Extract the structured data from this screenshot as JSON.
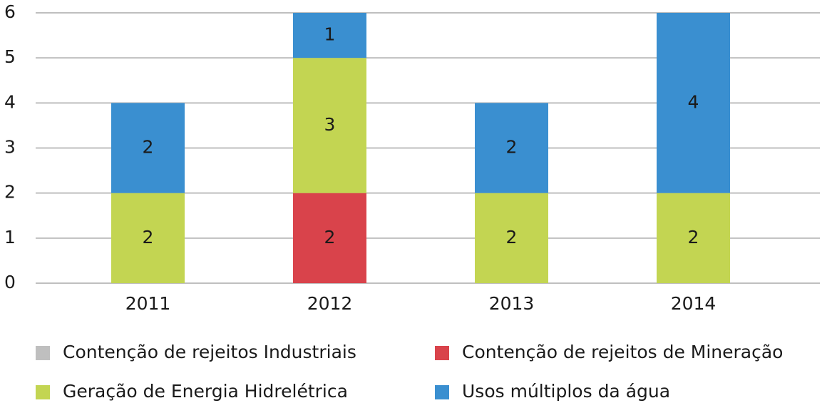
{
  "chart_data": {
    "type": "stacked_bar",
    "categories": [
      "2011",
      "2012",
      "2013",
      "2014"
    ],
    "series": [
      {
        "name": "Contenção de rejeitos Industriais",
        "color": "#bfbfbf",
        "values": [
          0,
          0,
          0,
          0
        ]
      },
      {
        "name": "Contenção de rejeitos de Mineração",
        "color": "#d9434b",
        "values": [
          0,
          2,
          0,
          0
        ]
      },
      {
        "name": "Geração de Energia Hidrelétrica",
        "color": "#c3d552",
        "values": [
          2,
          3,
          2,
          2
        ]
      },
      {
        "name": "Usos múltiplos da água",
        "color": "#3a8fd0",
        "values": [
          2,
          1,
          2,
          4
        ]
      }
    ],
    "ylim": [
      0,
      6
    ],
    "yticks": [
      0,
      1,
      2,
      3,
      4,
      5,
      6
    ],
    "grid": true,
    "legend": "bottom"
  }
}
